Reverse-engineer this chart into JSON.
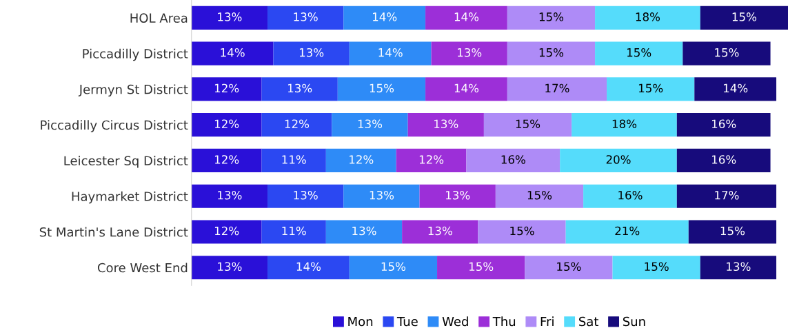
{
  "chart_data": {
    "type": "bar",
    "orientation": "horizontal",
    "stacked": true,
    "legend": "bottom",
    "grid": false,
    "tick_labels": "y",
    "categories": [
      "HOL Area",
      "Piccadilly District",
      "Jermyn St District",
      "Piccadilly Circus District",
      "Leicester Sq District",
      "Haymarket District",
      "St Martin's Lane District",
      "Core West End"
    ],
    "series": [
      {
        "name": "Mon",
        "color": "#2a10d8",
        "values": [
          13,
          14,
          12,
          12,
          12,
          13,
          12,
          13
        ],
        "value_labels": [
          "13%",
          "14%",
          "12%",
          "12%",
          "12%",
          "13%",
          "12%",
          "13%"
        ]
      },
      {
        "name": "Tue",
        "color": "#2b48f2",
        "values": [
          13,
          13,
          13,
          12,
          11,
          13,
          11,
          14
        ],
        "value_labels": [
          "13%",
          "13%",
          "13%",
          "12%",
          "11%",
          "13%",
          "11%",
          "14%"
        ]
      },
      {
        "name": "Wed",
        "color": "#2e8bf7",
        "values": [
          14,
          14,
          15,
          13,
          12,
          13,
          13,
          15
        ],
        "value_labels": [
          "14%",
          "14%",
          "15%",
          "13%",
          "12%",
          "13%",
          "13%",
          "15%"
        ]
      },
      {
        "name": "Thu",
        "color": "#9c2fd8",
        "values": [
          14,
          13,
          14,
          13,
          12,
          13,
          13,
          15
        ],
        "value_labels": [
          "14%",
          "13%",
          "14%",
          "13%",
          "12%",
          "13%",
          "13%",
          "15%"
        ]
      },
      {
        "name": "Fri",
        "color": "#ae8bf7",
        "values": [
          15,
          15,
          17,
          15,
          16,
          15,
          15,
          15
        ],
        "value_labels": [
          "15%",
          "15%",
          "17%",
          "15%",
          "16%",
          "15%",
          "15%",
          "15%"
        ]
      },
      {
        "name": "Sat",
        "color": "#55dcfb",
        "values": [
          18,
          15,
          15,
          18,
          20,
          16,
          21,
          15
        ],
        "value_labels": [
          "18%",
          "15%",
          "15%",
          "18%",
          "20%",
          "16%",
          "21%",
          "15%"
        ]
      },
      {
        "name": "Sun",
        "color": "#170b7c",
        "values": [
          15,
          15,
          14,
          16,
          16,
          17,
          15,
          13
        ],
        "value_labels": [
          "15%",
          "15%",
          "14%",
          "16%",
          "16%",
          "17%",
          "15%",
          "13%"
        ]
      }
    ]
  }
}
